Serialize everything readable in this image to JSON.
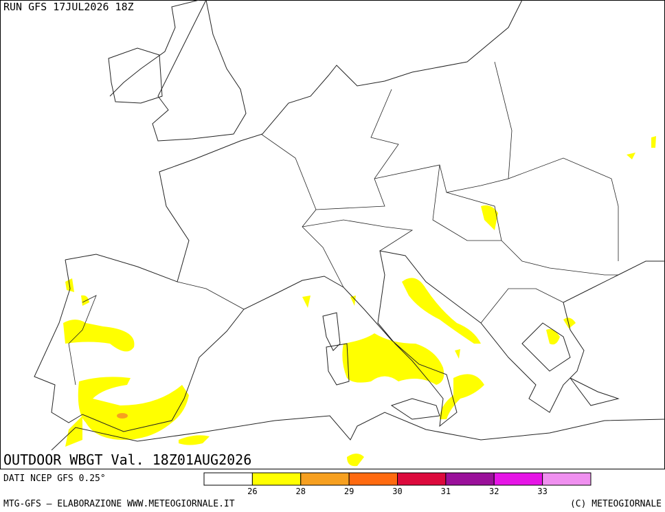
{
  "header": {
    "run": "RUN GFS 17JUL2026 18Z"
  },
  "map": {
    "title": "OUTDOOR WBGT Val. 18Z01AUG2026"
  },
  "legend": {
    "source": "DATI NCEP GFS 0.25°",
    "colors": [
      "#ffffff",
      "#ffff00",
      "#f7a020",
      "#ff6a10",
      "#dc0a3c",
      "#9a109a",
      "#e614e6",
      "#f090f0"
    ],
    "ticks": [
      26,
      28,
      29,
      30,
      31,
      32,
      33
    ]
  },
  "footer": {
    "left": "MTG-GFS — ELABORAZIONE WWW.METEOGIORNALE.IT",
    "right": "(C) METEOGIORNALE"
  }
}
